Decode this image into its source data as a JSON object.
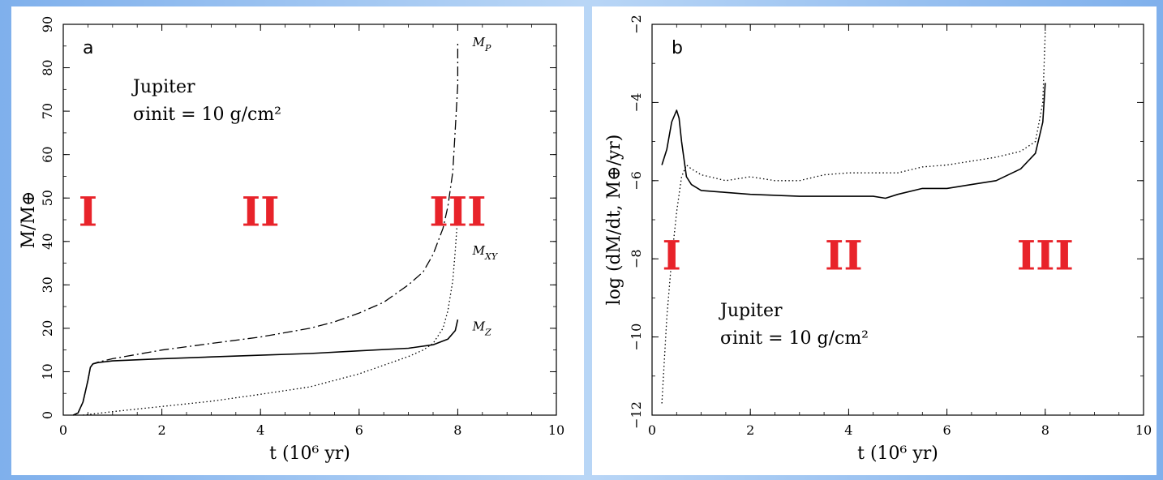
{
  "chart_data": [
    {
      "type": "line",
      "panel_label": "a",
      "xlabel": "t (10⁶ yr)",
      "ylabel": "M/M⊕",
      "xlim": [
        0,
        10
      ],
      "ylim": [
        0,
        90
      ],
      "x_ticks": [
        "0",
        "2",
        "4",
        "6",
        "8",
        "10"
      ],
      "y_ticks": [
        "0",
        "10",
        "20",
        "30",
        "40",
        "50",
        "60",
        "70",
        "80",
        "90"
      ],
      "annotation_lines": [
        "Jupiter",
        "σinit = 10 g/cm²"
      ],
      "phase_labels": [
        {
          "text": "I",
          "x": 0.5,
          "y": 47
        },
        {
          "text": "II",
          "x": 4.0,
          "y": 47
        },
        {
          "text": "III",
          "x": 8.0,
          "y": 47
        }
      ],
      "series": [
        {
          "name": "M_Z",
          "style": "solid",
          "x": [
            0.2,
            0.3,
            0.4,
            0.5,
            0.55,
            0.6,
            0.7,
            1,
            2,
            3,
            4,
            5,
            6,
            7,
            7.5,
            7.8,
            7.95,
            8.0
          ],
          "y": [
            0,
            0.5,
            3,
            8,
            11,
            11.8,
            12.1,
            12.5,
            13,
            13.4,
            13.8,
            14.2,
            14.8,
            15.4,
            16.2,
            17.5,
            19.5,
            22
          ]
        },
        {
          "name": "M_XY",
          "style": "dotted",
          "x": [
            0.4,
            1,
            2,
            3,
            4,
            5,
            6,
            6.5,
            7,
            7.3,
            7.5,
            7.7,
            7.8,
            7.9,
            7.95,
            8.0
          ],
          "y": [
            0,
            0.8,
            2,
            3.2,
            4.8,
            6.5,
            9.5,
            11.5,
            13.5,
            15,
            16.5,
            20,
            24,
            31,
            38,
            46
          ]
        },
        {
          "name": "M_P",
          "style": "dashdot",
          "x": [
            0.2,
            0.3,
            0.4,
            0.5,
            0.55,
            0.6,
            0.7,
            1,
            2,
            3,
            4,
            5,
            5.5,
            6,
            6.5,
            7,
            7.3,
            7.5,
            7.7,
            7.8,
            7.9,
            7.95,
            8.0,
            8.0
          ],
          "y": [
            0,
            0.5,
            3,
            8,
            11,
            11.8,
            12.2,
            13,
            15,
            16.5,
            18,
            20,
            21.5,
            23.5,
            26,
            30,
            33,
            37,
            43,
            48,
            56,
            66,
            76,
            86
          ]
        }
      ]
    },
    {
      "type": "line",
      "panel_label": "b",
      "xlabel": "t (10⁶ yr)",
      "ylabel": "log (dM/dt, M⊕/yr)",
      "xlim": [
        0,
        10
      ],
      "ylim": [
        -12,
        -2
      ],
      "x_ticks": [
        "0",
        "2",
        "4",
        "6",
        "8",
        "10"
      ],
      "y_ticks": [
        "−12",
        "−10",
        "−8",
        "−6",
        "−4",
        "−2"
      ],
      "annotation_lines": [
        "Jupiter",
        "σinit = 10 g/cm²"
      ],
      "phase_labels": [
        {
          "text": "I",
          "x": 0.4,
          "y": -7.9
        },
        {
          "text": "II",
          "x": 3.9,
          "y": -7.9
        },
        {
          "text": "III",
          "x": 8.0,
          "y": -7.9
        }
      ],
      "series": [
        {
          "name": "solid",
          "style": "solid",
          "x": [
            0.2,
            0.3,
            0.4,
            0.5,
            0.55,
            0.6,
            0.7,
            0.8,
            1,
            1.5,
            2,
            3,
            4,
            4.5,
            4.75,
            5.0,
            5.5,
            6,
            6.5,
            7,
            7.5,
            7.8,
            7.95,
            8.0
          ],
          "y": [
            -5.6,
            -5.2,
            -4.5,
            -4.2,
            -4.4,
            -5.0,
            -5.9,
            -6.1,
            -6.25,
            -6.3,
            -6.35,
            -6.4,
            -6.4,
            -6.4,
            -6.45,
            -6.35,
            -6.2,
            -6.2,
            -6.1,
            -6.0,
            -5.7,
            -5.3,
            -4.5,
            -3.5
          ]
        },
        {
          "name": "dotted",
          "style": "dotted",
          "x": [
            0.2,
            0.3,
            0.4,
            0.5,
            0.6,
            0.7,
            0.8,
            1,
            1.5,
            2,
            2.5,
            3,
            3.5,
            4,
            4.5,
            5,
            5.5,
            6,
            6.5,
            7,
            7.5,
            7.8,
            7.95,
            8.0
          ],
          "y": [
            -11.7,
            -9.5,
            -8.0,
            -6.8,
            -5.9,
            -5.6,
            -5.7,
            -5.85,
            -6.0,
            -5.9,
            -6.0,
            -6.0,
            -5.85,
            -5.8,
            -5.8,
            -5.8,
            -5.65,
            -5.6,
            -5.5,
            -5.4,
            -5.25,
            -5.0,
            -4.0,
            -2.2
          ]
        }
      ]
    }
  ]
}
